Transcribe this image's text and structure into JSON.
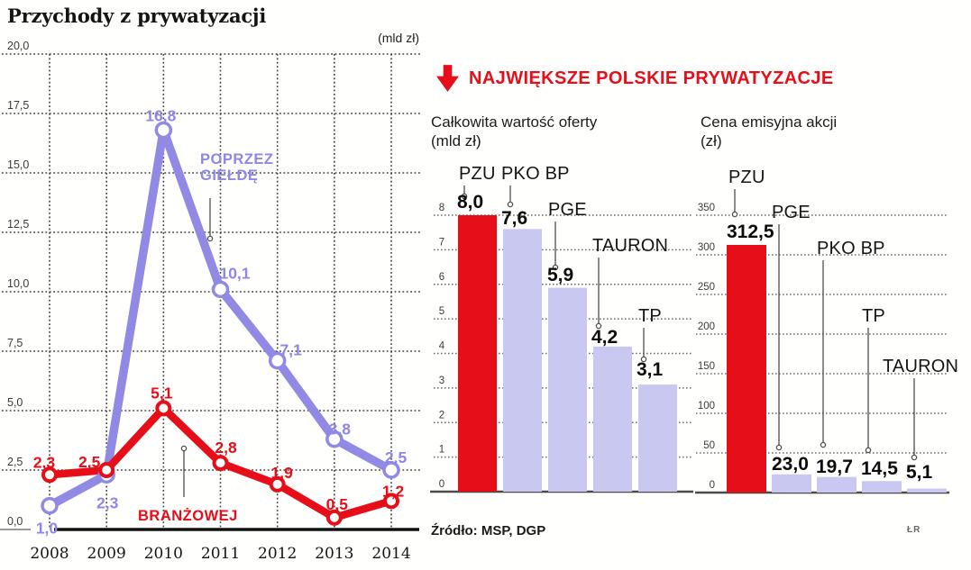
{
  "left_chart_header": {
    "title": "Przychody z prywatyzacji",
    "unit": "(mld zł)"
  },
  "right_panel": {
    "header": {
      "title": "NAJWIĘKSZE POLSKIE PRYWATYZACJE",
      "icon": "down-arrow-icon"
    },
    "source": "Źródło: MSP, DGP",
    "credit": "ŁR"
  },
  "chart_data": [
    {
      "type": "line",
      "title": "Przychody z prywatyzacji",
      "unit": "(mld zł)",
      "x": [
        "2008",
        "2009",
        "2010",
        "2011",
        "2012",
        "2013",
        "2014"
      ],
      "ylim": [
        0,
        20
      ],
      "yticks": [
        20,
        17.5,
        15,
        12.5,
        10,
        7.5,
        5,
        2.5,
        0
      ],
      "ytick_labels": [
        "20,0",
        "17,5",
        "15,0",
        "12,5",
        "10,0",
        "7,5",
        "5,0",
        "2,5",
        "0,0"
      ],
      "grid": true,
      "legend_position": "inline-annotations",
      "series": [
        {
          "name": "POPRZEZ GIEŁDĘ",
          "color": "#918ae4",
          "values": [
            1.0,
            2.3,
            16.8,
            10.1,
            7.1,
            3.8,
            2.5
          ],
          "value_labels": [
            "1,0",
            "2,3",
            "16,8",
            "10,1",
            "7,1",
            "3,8",
            "2,5"
          ]
        },
        {
          "name": "BRANŻOWEJ",
          "color": "#e60e19",
          "values": [
            2.3,
            2.5,
            5.1,
            2.8,
            1.9,
            0.5,
            1.2
          ],
          "value_labels": [
            "2,3",
            "2,5",
            "5,1",
            "2,8",
            "1,9",
            "0,5",
            "1,2"
          ]
        }
      ]
    },
    {
      "type": "bar",
      "title": "Całkowita wartość oferty",
      "unit": "(mld zł)",
      "categories": [
        "PZU",
        "PKO BP",
        "PGE",
        "TAURON",
        "TP"
      ],
      "values": [
        8.0,
        7.6,
        5.9,
        4.2,
        3.1
      ],
      "value_labels": [
        "8,0",
        "7,6",
        "5,9",
        "4,2",
        "3,1"
      ],
      "bar_colors": [
        "#e60e19",
        "#c9c8f0",
        "#c9c8f0",
        "#c9c8f0",
        "#c9c8f0"
      ],
      "ylim": [
        0,
        8
      ],
      "yticks": [
        8,
        7,
        6,
        5,
        4,
        3,
        2,
        1,
        0
      ],
      "ytick_labels": [
        "8",
        "7",
        "6",
        "5",
        "4",
        "3",
        "2",
        "1",
        "0"
      ],
      "grid": true
    },
    {
      "type": "bar",
      "title": "Cena emisyjna akcji",
      "unit": "(zł)",
      "categories": [
        "PZU",
        "PGE",
        "PKO BP",
        "TP",
        "TAURON"
      ],
      "values": [
        312.5,
        23.0,
        19.7,
        14.5,
        5.1
      ],
      "value_labels": [
        "312,5",
        "23,0",
        "19,7",
        "14,5",
        "5,1"
      ],
      "bar_colors": [
        "#e60e19",
        "#c9c8f0",
        "#c9c8f0",
        "#c9c8f0",
        "#c9c8f0"
      ],
      "ylim": [
        0,
        350
      ],
      "yticks": [
        350,
        300,
        250,
        200,
        150,
        100,
        50,
        0
      ],
      "ytick_labels": [
        "350",
        "300",
        "250",
        "200",
        "150",
        "100",
        "50",
        "0"
      ],
      "grid": true
    }
  ],
  "colors": {
    "red": "#e60e19",
    "lavender_bar": "#c9c8f0",
    "purple_line": "#918ae4",
    "purple_text": "#8f87e6",
    "grid_dark": "#3f3f3f",
    "grid_gray": "#6e6e6e",
    "text": "#151515"
  }
}
